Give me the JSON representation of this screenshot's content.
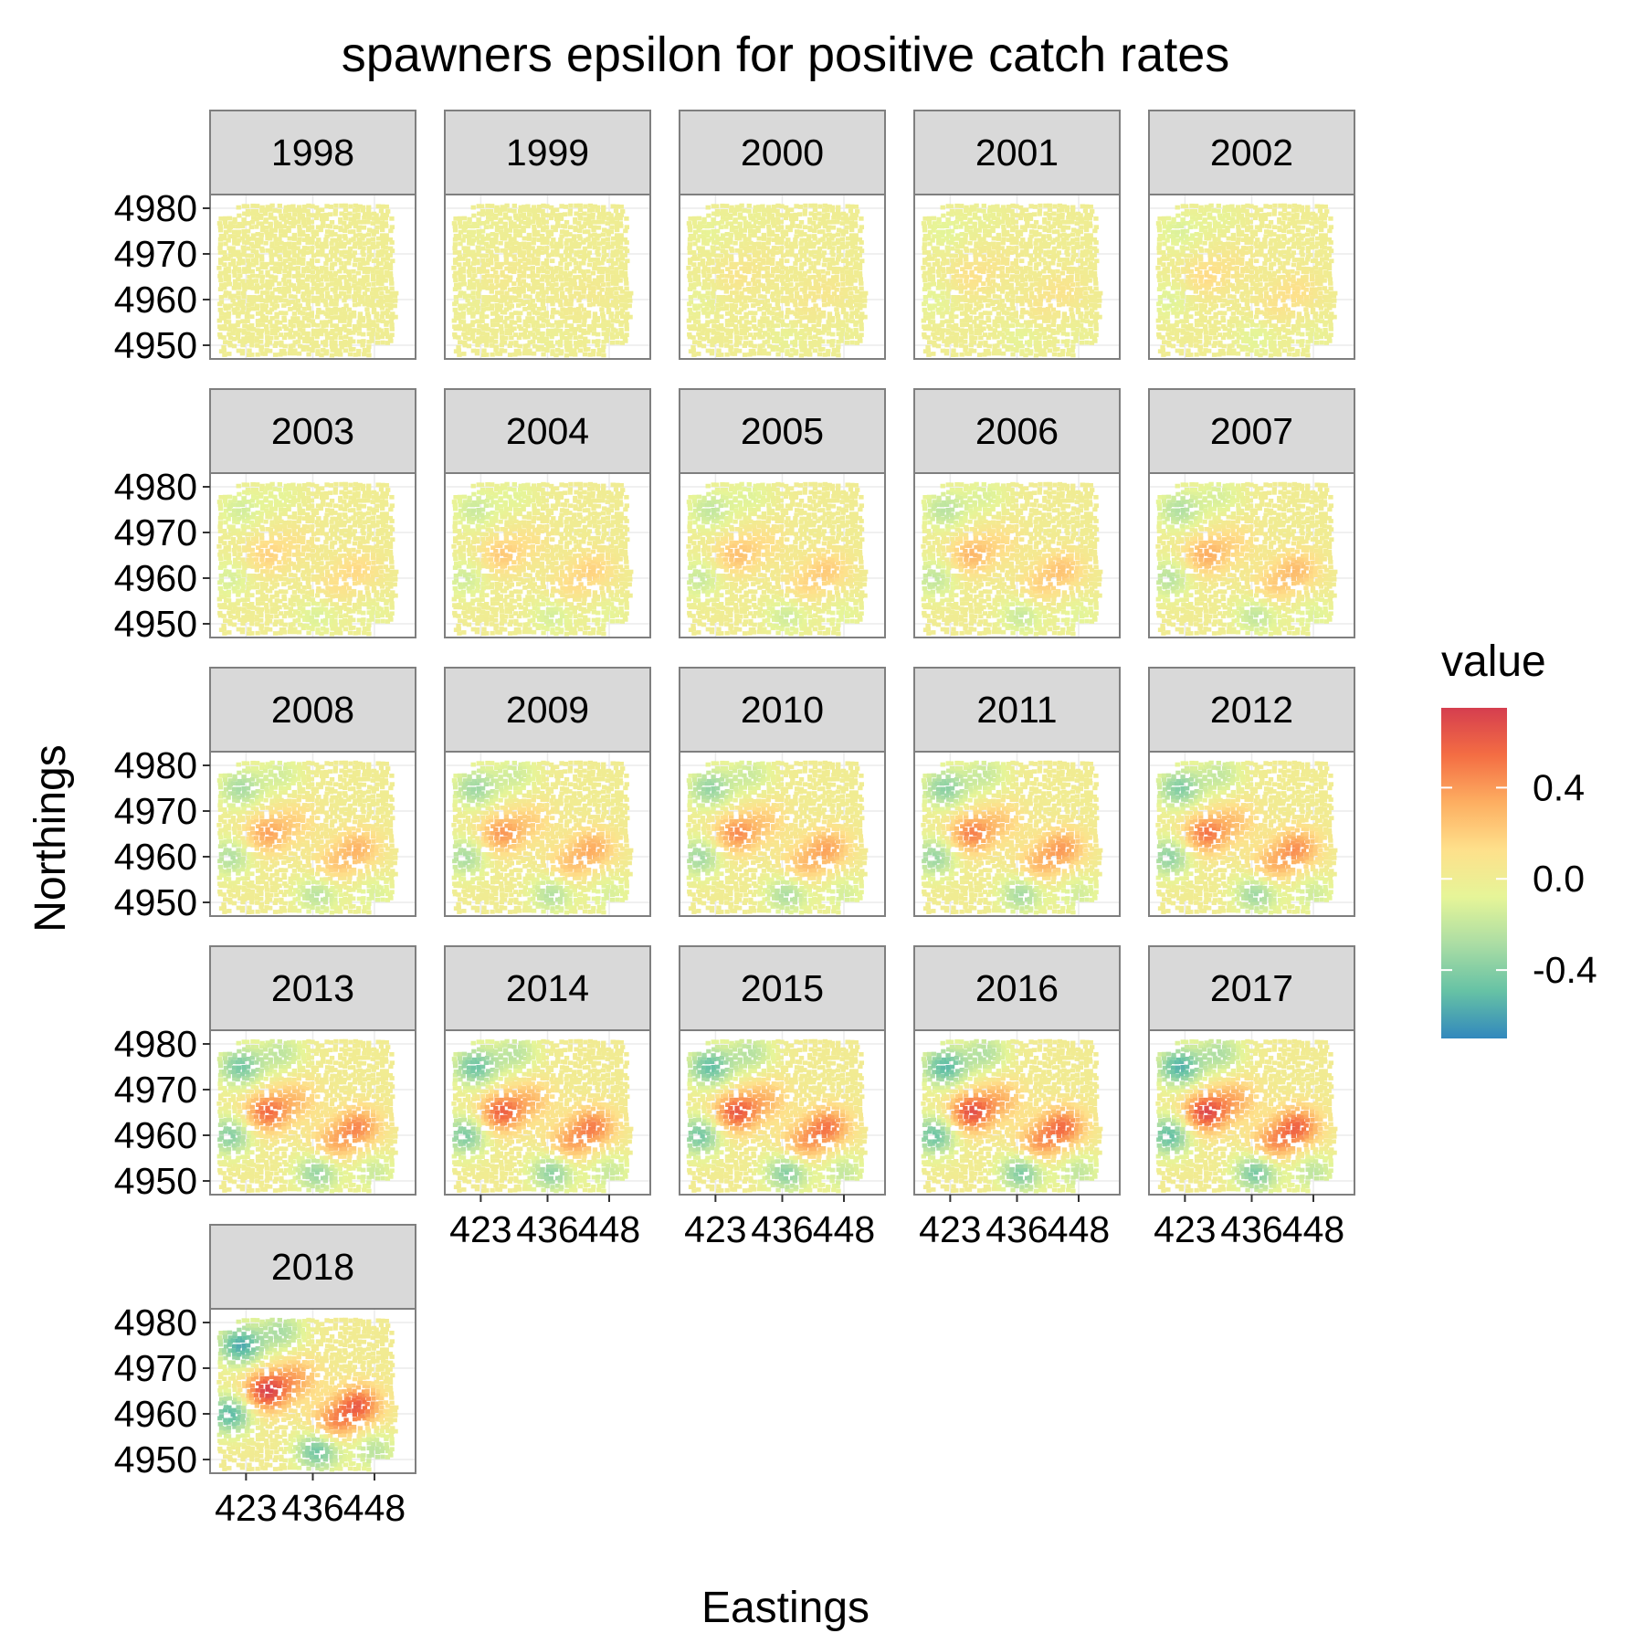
{
  "chart_data": {
    "type": "heatmap",
    "title": "spawners epsilon for positive catch rates",
    "xlabel": "Eastings",
    "ylabel": "Northings",
    "x_ticks": [
      423,
      436,
      448
    ],
    "x_tick_labels": [
      "423",
      "436",
      "448"
    ],
    "y_ticks": [
      4950,
      4960,
      4970,
      4980
    ],
    "y_tick_labels": [
      "4950",
      "4960",
      "4970",
      "4980"
    ],
    "xlim": [
      416,
      456
    ],
    "ylim": [
      4947,
      4983
    ],
    "facets": [
      "1998",
      "1999",
      "2000",
      "2001",
      "2002",
      "2003",
      "2004",
      "2005",
      "2006",
      "2007",
      "2008",
      "2009",
      "2010",
      "2011",
      "2012",
      "2013",
      "2014",
      "2015",
      "2016",
      "2017",
      "2018"
    ],
    "facet_columns": 5,
    "legend": {
      "title": "value",
      "position": "right",
      "breaks": [
        0.4,
        0.0,
        -0.4
      ],
      "break_labels": [
        "0.4",
        "0.0",
        "-0.4"
      ],
      "limits": [
        -0.7,
        0.75
      ],
      "colors": [
        "#3288bd",
        "#66c2a5",
        "#abdda4",
        "#e6f598",
        "#fee08b",
        "#fdae61",
        "#f46d43",
        "#d53e4f"
      ]
    },
    "grid": true,
    "field_description": "spatial random field (epsilon) per year; intensity grows over time",
    "hotspots": [
      {
        "x": 427,
        "y": 4965,
        "value": 0.7
      },
      {
        "x": 445,
        "y": 4962,
        "value": 0.55
      },
      {
        "x": 440,
        "y": 4958,
        "value": 0.4
      },
      {
        "x": 433,
        "y": 4968,
        "value": 0.3
      },
      {
        "x": 420,
        "y": 4960,
        "value": -0.55
      },
      {
        "x": 422,
        "y": 4975,
        "value": -0.6
      },
      {
        "x": 437,
        "y": 4952,
        "value": -0.5
      },
      {
        "x": 430,
        "y": 4978,
        "value": -0.3
      },
      {
        "x": 448,
        "y": 4952,
        "value": -0.25
      }
    ]
  },
  "colors": {
    "strip_fill": "#d9d9d9",
    "panel_border": "#7f7f7f",
    "grid": "#ebebeb"
  }
}
